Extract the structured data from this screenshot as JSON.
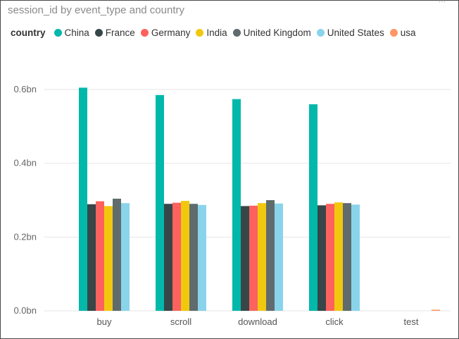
{
  "chart_data": {
    "type": "bar",
    "title": "session_id by event_type and country",
    "legend_title": "country",
    "legend_position": "top-left",
    "categories": [
      "buy",
      "scroll",
      "download",
      "click",
      "test"
    ],
    "y_ticks": [
      "0.0bn",
      "0.2bn",
      "0.4bn",
      "0.6bn"
    ],
    "y_tick_values": [
      0,
      0.2,
      0.4,
      0.6
    ],
    "ylim": [
      0,
      0.62
    ],
    "grid": true,
    "series": [
      {
        "name": "China",
        "color": "#01B8AA",
        "values": [
          0.605,
          0.585,
          0.574,
          0.56,
          0
        ]
      },
      {
        "name": "France",
        "color": "#374649",
        "values": [
          0.289,
          0.29,
          0.284,
          0.286,
          0
        ]
      },
      {
        "name": "Germany",
        "color": "#FD625E",
        "values": [
          0.297,
          0.293,
          0.285,
          0.29,
          0
        ]
      },
      {
        "name": "India",
        "color": "#F2C80F",
        "values": [
          0.284,
          0.298,
          0.292,
          0.294,
          0
        ]
      },
      {
        "name": "United Kingdom",
        "color": "#5F6B6D",
        "values": [
          0.304,
          0.29,
          0.3,
          0.292,
          0
        ]
      },
      {
        "name": "United States",
        "color": "#8AD4EB",
        "values": [
          0.292,
          0.287,
          0.291,
          0.288,
          0
        ]
      },
      {
        "name": "usa",
        "color": "#FE9666",
        "values": [
          0,
          0,
          0,
          0,
          0.003
        ]
      }
    ]
  }
}
